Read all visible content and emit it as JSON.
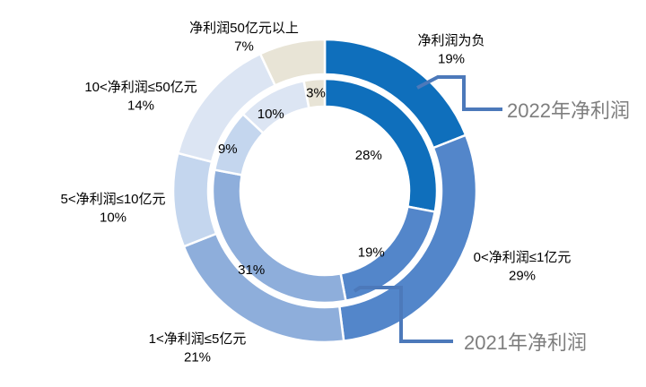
{
  "chart_data": {
    "type": "pie",
    "subtype": "double-ring-donut",
    "title": "",
    "unit": "%",
    "categories": [
      "净利润为负",
      "0<净利润≤1亿元",
      "1<净利润≤5亿元",
      "5<净利润≤10亿元",
      "10<净利润≤50亿元",
      "净利润50亿元以上"
    ],
    "series": [
      {
        "name": "2022年净利润",
        "ring": "outer",
        "values": [
          19,
          29,
          21,
          10,
          14,
          7
        ]
      },
      {
        "name": "2021年净利润",
        "ring": "inner",
        "values": [
          28,
          19,
          31,
          9,
          10,
          3
        ]
      }
    ],
    "colors": [
      "#0F6FBC",
      "#5386CA",
      "#8EAEDB",
      "#C4D6EE",
      "#DCE5F3",
      "#E8E4D6"
    ],
    "label_format": "value%",
    "legend_position": "callout-annotations",
    "grid": false
  },
  "annotations": {
    "callout_line_color": "#4C79BA",
    "series_label_color": "#7E7E7E"
  }
}
